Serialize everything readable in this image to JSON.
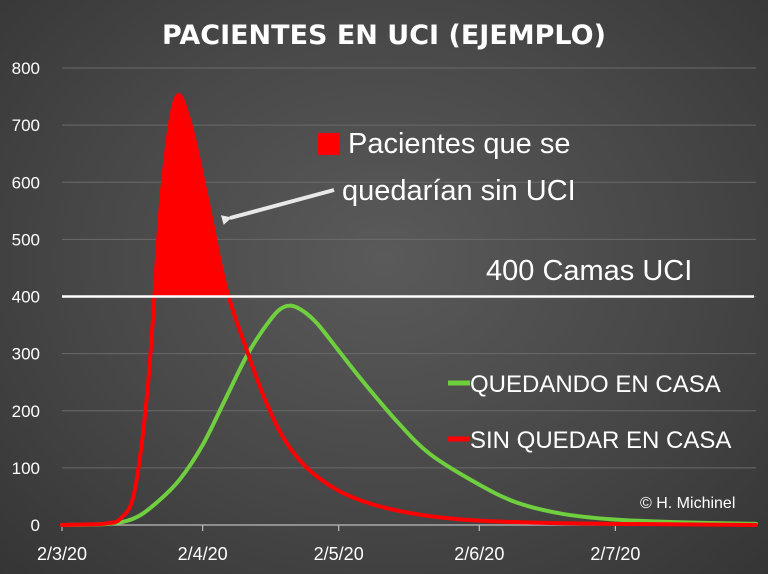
{
  "chart_data": {
    "type": "line",
    "title": "PACIENTES EN UCI (EJEMPLO)",
    "xlabel": "",
    "ylabel": "",
    "x_domain": [
      "2020-03-02",
      "2020-08-02"
    ],
    "x_ticks": [
      {
        "date": "2020-03-02",
        "label": "2/3/20"
      },
      {
        "date": "2020-04-02",
        "label": "2/4/20"
      },
      {
        "date": "2020-05-02",
        "label": "2/5/20"
      },
      {
        "date": "2020-06-02",
        "label": "2/6/20"
      },
      {
        "date": "2020-07-02",
        "label": "2/7/20"
      }
    ],
    "ylim": [
      0,
      800
    ],
    "y_ticks": [
      0,
      100,
      200,
      300,
      400,
      500,
      600,
      700,
      800
    ],
    "grid": "horizontal",
    "legend_position": "right",
    "series": [
      {
        "name": "SIN QUEDAR EN CASA",
        "color": "#ff0000",
        "points": [
          [
            "2020-03-02",
            0
          ],
          [
            "2020-03-08",
            1
          ],
          [
            "2020-03-12",
            3
          ],
          [
            "2020-03-15",
            12
          ],
          [
            "2020-03-18",
            60
          ],
          [
            "2020-03-21",
            250
          ],
          [
            "2020-03-24",
            580
          ],
          [
            "2020-03-27",
            745
          ],
          [
            "2020-03-30",
            710
          ],
          [
            "2020-04-03",
            570
          ],
          [
            "2020-04-07",
            420
          ],
          [
            "2020-04-12",
            300
          ],
          [
            "2020-04-16",
            215
          ],
          [
            "2020-04-20",
            150
          ],
          [
            "2020-04-25",
            100
          ],
          [
            "2020-05-02",
            60
          ],
          [
            "2020-05-10",
            35
          ],
          [
            "2020-05-20",
            18
          ],
          [
            "2020-06-01",
            8
          ],
          [
            "2020-06-15",
            4
          ],
          [
            "2020-07-01",
            2
          ],
          [
            "2020-08-02",
            0
          ]
        ]
      },
      {
        "name": "QUEDANDO EN CASA",
        "color": "#6fcf3f",
        "points": [
          [
            "2020-03-02",
            0
          ],
          [
            "2020-03-12",
            2
          ],
          [
            "2020-03-18",
            12
          ],
          [
            "2020-03-23",
            40
          ],
          [
            "2020-03-28",
            80
          ],
          [
            "2020-04-02",
            140
          ],
          [
            "2020-04-07",
            220
          ],
          [
            "2020-04-12",
            300
          ],
          [
            "2020-04-17",
            360
          ],
          [
            "2020-04-20",
            382
          ],
          [
            "2020-04-23",
            380
          ],
          [
            "2020-04-27",
            355
          ],
          [
            "2020-05-02",
            305
          ],
          [
            "2020-05-08",
            245
          ],
          [
            "2020-05-15",
            180
          ],
          [
            "2020-05-22",
            125
          ],
          [
            "2020-06-01",
            75
          ],
          [
            "2020-06-10",
            40
          ],
          [
            "2020-06-20",
            20
          ],
          [
            "2020-07-01",
            10
          ],
          [
            "2020-07-15",
            5
          ],
          [
            "2020-08-02",
            2
          ]
        ]
      }
    ],
    "reference_line": {
      "value": 400,
      "label": "400 Camas UCI",
      "color": "#ffffff"
    },
    "overflow_area": {
      "label_line1": "Pacientes que se",
      "label_line2": "quedarían sin UCI",
      "color": "#ff0000",
      "threshold": 400
    },
    "credit": "© H. Michinel"
  }
}
